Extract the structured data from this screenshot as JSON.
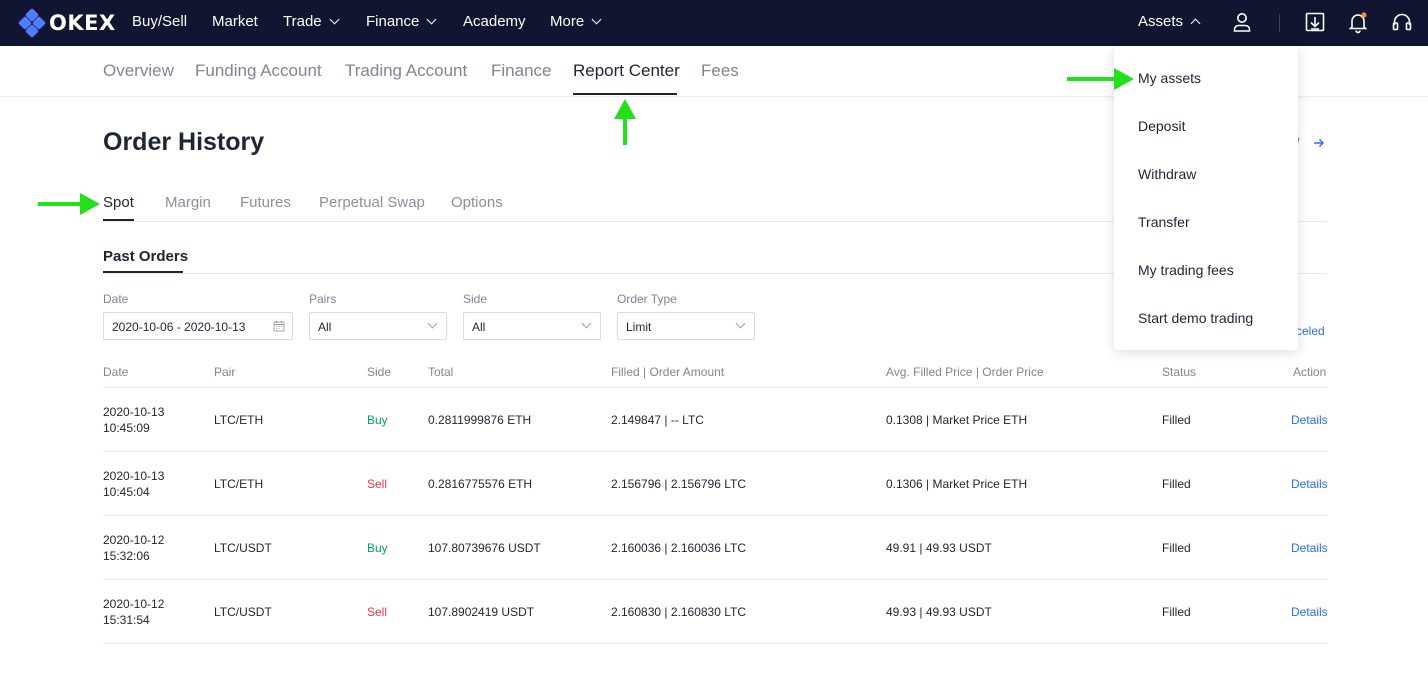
{
  "topnav": {
    "logo_text": "OKEX",
    "items": [
      {
        "label": "Buy/Sell"
      },
      {
        "label": "Market"
      },
      {
        "label": "Trade"
      },
      {
        "label": "Finance"
      },
      {
        "label": "Academy"
      },
      {
        "label": "More"
      }
    ],
    "assets_label": "Assets",
    "icons": [
      "user-icon",
      "download-icon",
      "bell-icon",
      "headset-icon"
    ],
    "colors": {
      "bar": "#101631",
      "logo": "#4f7bff",
      "notification_dot": "#f58d2f"
    }
  },
  "subnav": {
    "tabs": [
      {
        "label": "Overview"
      },
      {
        "label": "Funding Account"
      },
      {
        "label": "Trading Account"
      },
      {
        "label": "Finance"
      },
      {
        "label": "Report Center"
      },
      {
        "label": "Fees"
      }
    ],
    "active_tab": "Report Center"
  },
  "page": {
    "title": "Order History",
    "view_link_text": "/",
    "product_tabs": [
      {
        "label": "Spot"
      },
      {
        "label": "Margin"
      },
      {
        "label": "Futures"
      },
      {
        "label": "Perpetual Swap"
      },
      {
        "label": "Options"
      }
    ],
    "active_product_tab": "Spot",
    "section_title": "Past Orders",
    "canceled_link": "celed"
  },
  "filters": {
    "date": {
      "label": "Date",
      "value": "2020-10-06 - 2020-10-13"
    },
    "pairs": {
      "label": "Pairs",
      "value": "All"
    },
    "side": {
      "label": "Side",
      "value": "All"
    },
    "order_type": {
      "label": "Order Type",
      "value": "Limit"
    }
  },
  "table": {
    "headers": [
      "Date",
      "Pair",
      "Side",
      "Total",
      "Filled | Order Amount",
      "Avg. Filled Price | Order Price",
      "Status",
      "Action"
    ],
    "rows": [
      {
        "date": "2020-10-13",
        "time": "10:45:09",
        "pair": "LTC/ETH",
        "side": "Buy",
        "total": "0.2811999876 ETH",
        "filled": "2.149847 | -- LTC",
        "price": "0.1308 | Market Price ETH",
        "status": "Filled",
        "action": "Details"
      },
      {
        "date": "2020-10-13",
        "time": "10:45:04",
        "pair": "LTC/ETH",
        "side": "Sell",
        "total": "0.2816775576 ETH",
        "filled": "2.156796 | 2.156796 LTC",
        "price": "0.1306 | Market Price ETH",
        "status": "Filled",
        "action": "Details"
      },
      {
        "date": "2020-10-12",
        "time": "15:32:06",
        "pair": "LTC/USDT",
        "side": "Buy",
        "total": "107.80739676 USDT",
        "filled": "2.160036 | 2.160036 LTC",
        "price": "49.91 | 49.93 USDT",
        "status": "Filled",
        "action": "Details"
      },
      {
        "date": "2020-10-12",
        "time": "15:31:54",
        "pair": "LTC/USDT",
        "side": "Sell",
        "total": "107.8902419 USDT",
        "filled": "2.160830 | 2.160830 LTC",
        "price": "49.93 | 49.93 USDT",
        "status": "Filled",
        "action": "Details"
      }
    ],
    "colors": {
      "buy": "#06a65a",
      "sell": "#e23e3e",
      "link": "#2f6df6"
    }
  },
  "assets_menu": {
    "items": [
      {
        "label": "My assets"
      },
      {
        "label": "Deposit"
      },
      {
        "label": "Withdraw"
      },
      {
        "label": "Transfer"
      },
      {
        "label": "My trading fees"
      },
      {
        "label": "Start demo trading"
      }
    ]
  },
  "annotations": {
    "arrow_color": "#22e01a"
  }
}
